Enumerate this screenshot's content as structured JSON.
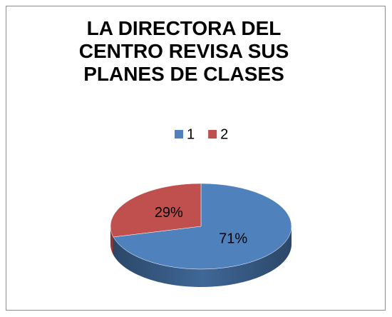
{
  "chart_data": {
    "type": "pie",
    "title": "LA DIRECTORA DEL CENTRO REVISA SUS PLANES DE CLASES",
    "categories": [
      "1",
      "2"
    ],
    "values": [
      71,
      29
    ],
    "value_labels": [
      "71%",
      "29%"
    ],
    "colors": [
      "#4f81bd",
      "#c0504d"
    ],
    "legend": "top",
    "three_d": true
  }
}
